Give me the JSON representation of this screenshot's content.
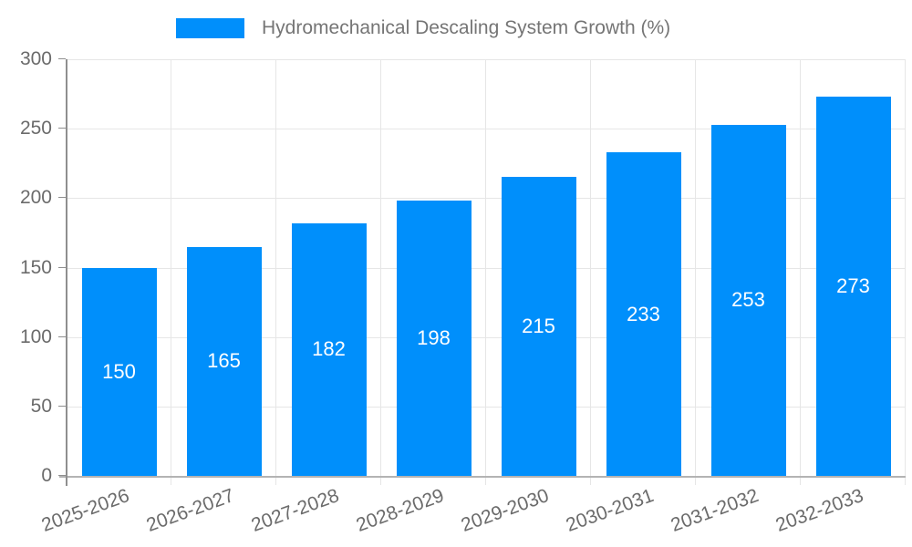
{
  "page": {
    "background": "#ffffff"
  },
  "chart_data": {
    "type": "bar",
    "title": "Hydromechanical Descaling System Growth (%)",
    "categories": [
      "2025-2026",
      "2026-2027",
      "2027-2028",
      "2028-2029",
      "2029-2030",
      "2030-2031",
      "2031-2032",
      "2032-2033"
    ],
    "values": [
      150,
      165,
      182,
      198,
      215,
      233,
      253,
      273
    ],
    "xlabel": "",
    "ylabel": "",
    "ylim": [
      0,
      300
    ],
    "yticks": [
      0,
      50,
      100,
      150,
      200,
      250,
      300
    ],
    "grid": true,
    "legend_position": "top",
    "value_label_position": "inside-center",
    "x_label_rotation_deg": -20,
    "colors": {
      "bar": "#008FFB",
      "value_label": "#ffffff",
      "axis_label": "#6b6b6b",
      "legend_label": "#757575",
      "gridline": "#e6e6e6",
      "y_axis_line": "#8f8f8f",
      "x_axis_line": "#b3b3b3"
    }
  }
}
